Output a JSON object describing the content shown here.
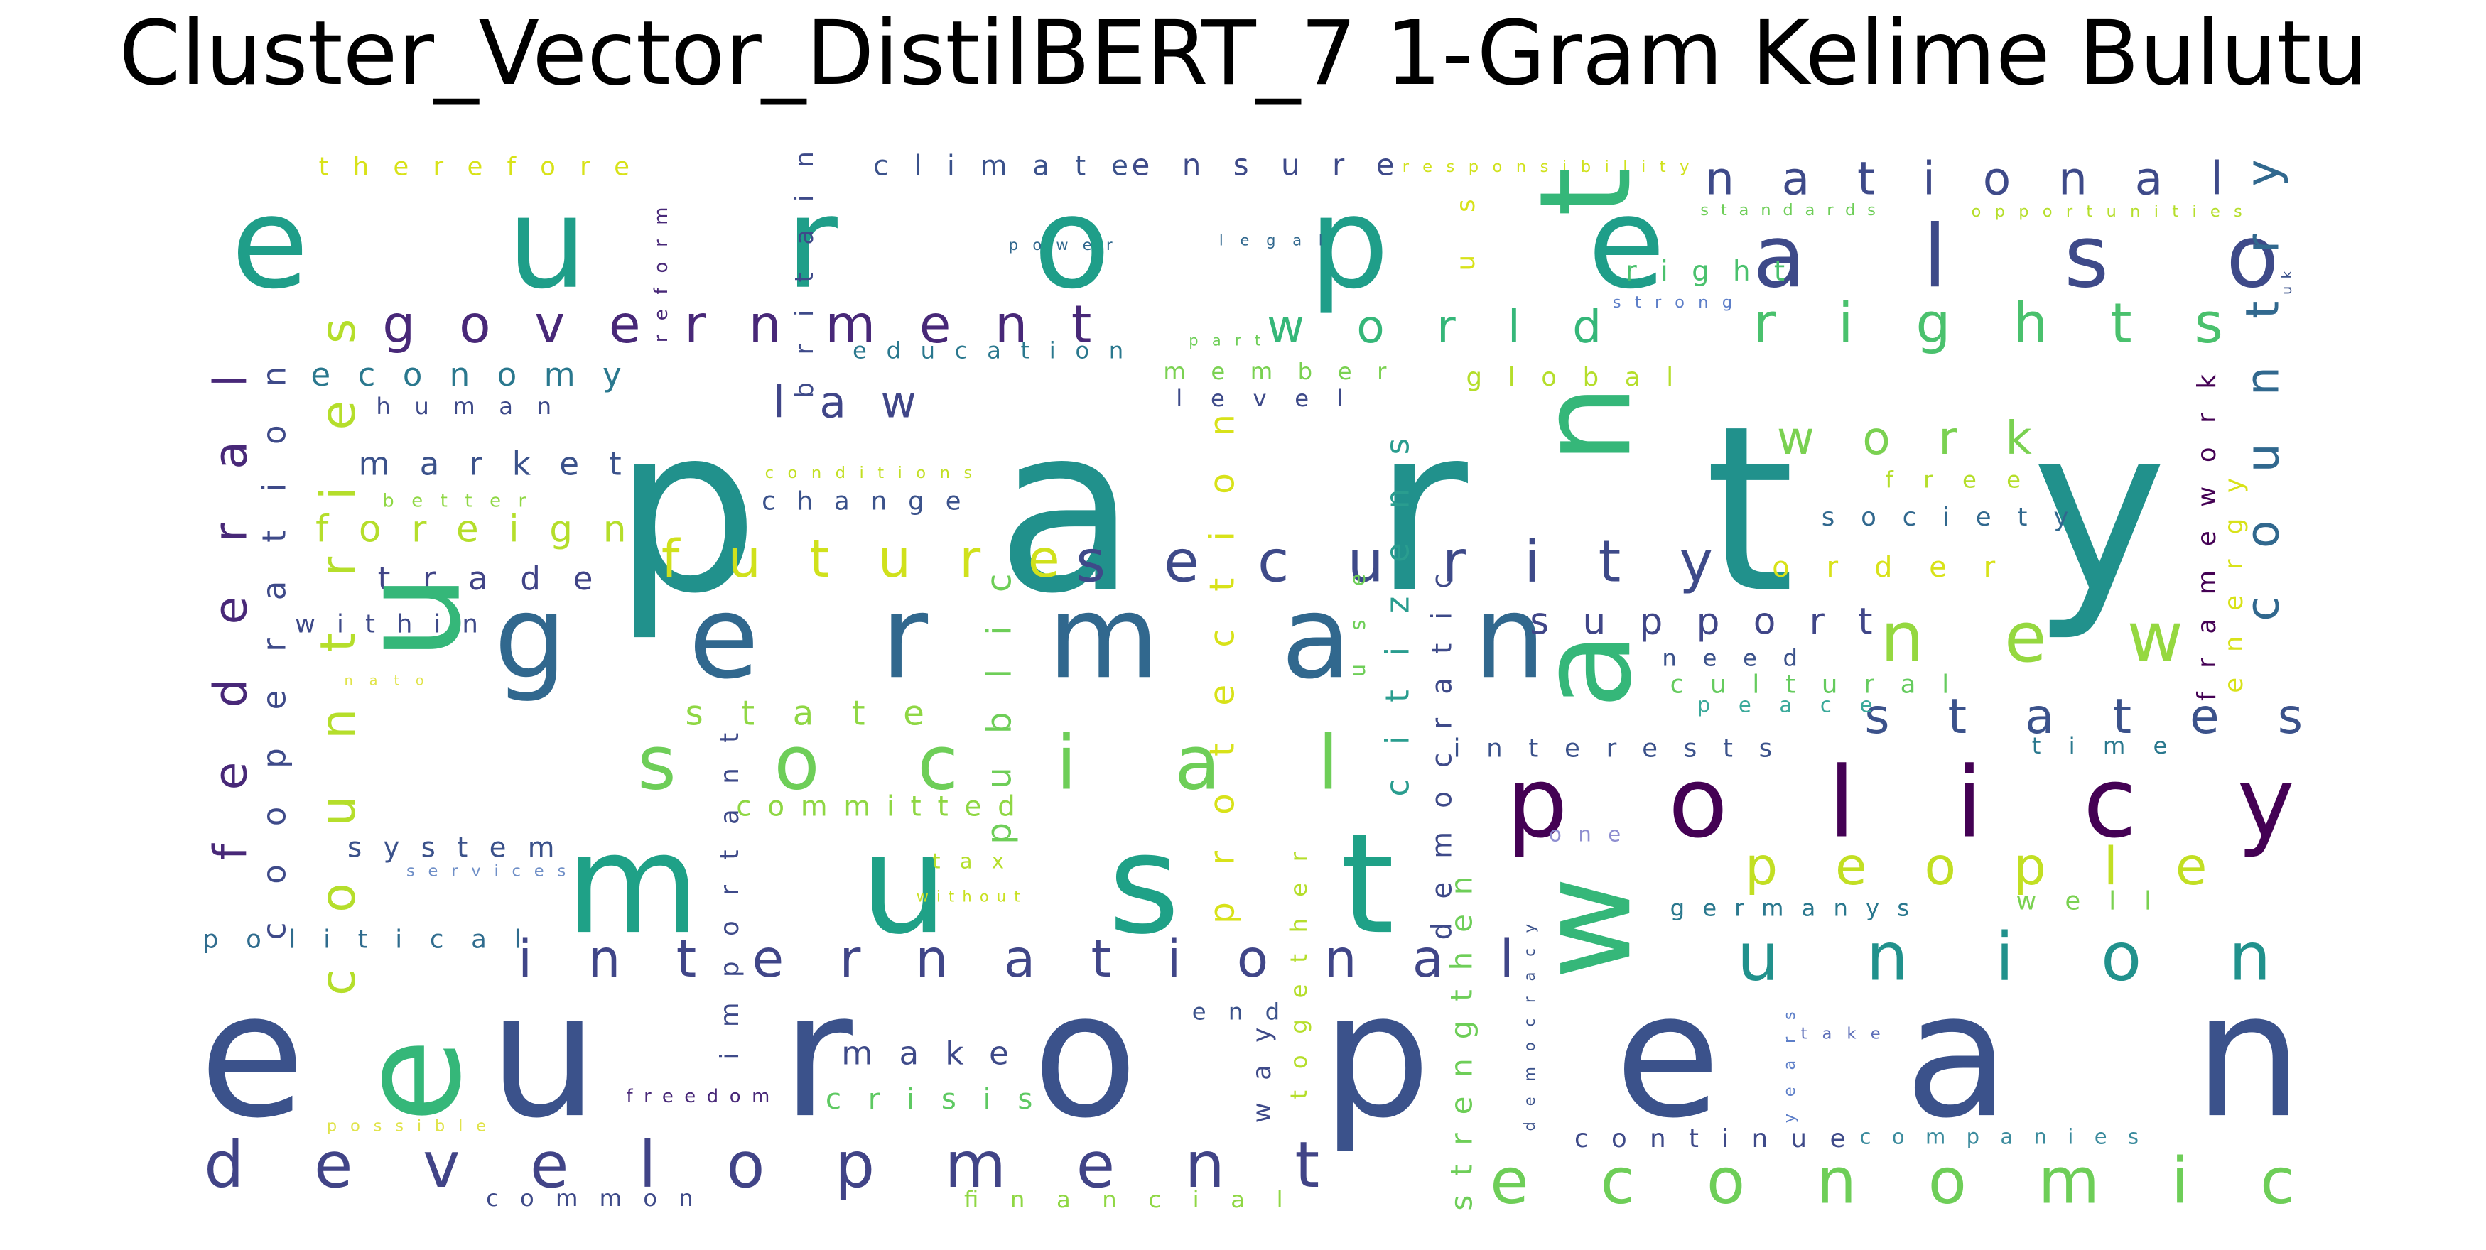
{
  "title": "Cluster_Vector_DistilBERT_7 1-Gram Kelime Bulutu",
  "words": [
    {
      "text": "party",
      "color": "#21918c"
    },
    {
      "text": "european",
      "color": "#3b528b"
    },
    {
      "text": "europe",
      "color": "#1f9e89"
    },
    {
      "text": "german",
      "color": "#31688e"
    },
    {
      "text": "must",
      "color": "#1fa187"
    },
    {
      "text": "also",
      "color": "#3e4a89"
    },
    {
      "text": "government",
      "color": "#482878"
    },
    {
      "text": "world",
      "color": "#35b779"
    },
    {
      "text": "rights",
      "color": "#4ac16d"
    },
    {
      "text": "national",
      "color": "#3e4a89"
    },
    {
      "text": "law",
      "color": "#404688"
    },
    {
      "text": "economy",
      "color": "#2a788e"
    },
    {
      "text": "work",
      "color": "#7ad151"
    },
    {
      "text": "security",
      "color": "#3e4a89"
    },
    {
      "text": "future",
      "color": "#d0e11c"
    },
    {
      "text": "market",
      "color": "#3b528b"
    },
    {
      "text": "foreign",
      "color": "#b5de2b"
    },
    {
      "text": "trade",
      "color": "#414487"
    },
    {
      "text": "within",
      "color": "#3e4a89"
    },
    {
      "text": "social",
      "color": "#6ece58"
    },
    {
      "text": "state",
      "color": "#8fd744"
    },
    {
      "text": "support",
      "color": "#404688"
    },
    {
      "text": "new",
      "color": "#95d840"
    },
    {
      "text": "states",
      "color": "#3b528b"
    },
    {
      "text": "policy",
      "color": "#440154"
    },
    {
      "text": "people",
      "color": "#c2df23"
    },
    {
      "text": "union",
      "color": "#21918c"
    },
    {
      "text": "international",
      "color": "#404688"
    },
    {
      "text": "development",
      "color": "#414487"
    },
    {
      "text": "economic",
      "color": "#6ece58"
    },
    {
      "text": "political",
      "color": "#2f6c8e"
    },
    {
      "text": "system",
      "color": "#3b528b"
    },
    {
      "text": "services",
      "color": "#6f8fc7"
    },
    {
      "text": "committed",
      "color": "#8fd744"
    },
    {
      "text": "tax",
      "color": "#b5de2b"
    },
    {
      "text": "without",
      "color": "#c8e020"
    },
    {
      "text": "make",
      "color": "#3e4a89"
    },
    {
      "text": "crisis",
      "color": "#5ec962"
    },
    {
      "text": "freedom",
      "color": "#482878"
    },
    {
      "text": "possible",
      "color": "#e0e34a"
    },
    {
      "text": "common",
      "color": "#3e4a89"
    },
    {
      "text": "financial",
      "color": "#8fd744"
    },
    {
      "text": "end",
      "color": "#3b528b"
    },
    {
      "text": "continue",
      "color": "#3e4a89"
    },
    {
      "text": "companies",
      "color": "#3b8b9d"
    },
    {
      "text": "germanys",
      "color": "#2a788e"
    },
    {
      "text": "well",
      "color": "#7ad151"
    },
    {
      "text": "one",
      "color": "#8e8ed0"
    },
    {
      "text": "interests",
      "color": "#3b528b"
    },
    {
      "text": "need",
      "color": "#3b528b"
    },
    {
      "text": "cultural",
      "color": "#65cb5e"
    },
    {
      "text": "peace",
      "color": "#3aa99a"
    },
    {
      "text": "time",
      "color": "#2a788e"
    },
    {
      "text": "order",
      "color": "#d8e219"
    },
    {
      "text": "society",
      "color": "#31688e"
    },
    {
      "text": "free",
      "color": "#b5de2b"
    },
    {
      "text": "right",
      "color": "#4ac16d"
    },
    {
      "text": "strong",
      "color": "#5c7ec8"
    },
    {
      "text": "standards",
      "color": "#6ece58"
    },
    {
      "text": "opportunities",
      "color": "#b5de2b"
    },
    {
      "text": "responsibility",
      "color": "#d0e11c"
    },
    {
      "text": "ensure",
      "color": "#3e4a89"
    },
    {
      "text": "climate",
      "color": "#3b528b"
    },
    {
      "text": "therefore",
      "color": "#d8e219"
    },
    {
      "text": "power",
      "color": "#31688e"
    },
    {
      "text": "legal",
      "color": "#31688e"
    },
    {
      "text": "education",
      "color": "#2a788e"
    },
    {
      "text": "part",
      "color": "#6ece58"
    },
    {
      "text": "member",
      "color": "#7ad151"
    },
    {
      "text": "level",
      "color": "#3e4a89"
    },
    {
      "text": "global",
      "color": "#b5de2b"
    },
    {
      "text": "human",
      "color": "#3e4a89"
    },
    {
      "text": "conditions",
      "color": "#c2df23"
    },
    {
      "text": "better",
      "color": "#8fd744"
    },
    {
      "text": "change",
      "color": "#3b528b"
    },
    {
      "text": "nato",
      "color": "#e0e34a"
    },
    {
      "text": "take",
      "color": "#5c6eb8"
    },
    {
      "text": "eu",
      "color": "#35b779"
    },
    {
      "text": "want",
      "color": "#35b779"
    },
    {
      "text": "federal",
      "color": "#482878"
    },
    {
      "text": "countries",
      "color": "#b5de2b"
    },
    {
      "text": "cooperation",
      "color": "#3e4a89"
    },
    {
      "text": "britain",
      "color": "#3e4a89"
    },
    {
      "text": "reform",
      "color": "#482878"
    },
    {
      "text": "important",
      "color": "#3e4a89"
    },
    {
      "text": "public",
      "color": "#6ece58"
    },
    {
      "text": "protection",
      "color": "#d8e219"
    },
    {
      "text": "citizens",
      "color": "#2a9d8f"
    },
    {
      "text": "use",
      "color": "#6ece58"
    },
    {
      "text": "democratic",
      "color": "#3e4a89"
    },
    {
      "text": "us",
      "color": "#d8e219"
    },
    {
      "text": "together",
      "color": "#b5de2b"
    },
    {
      "text": "way",
      "color": "#3e4a89"
    },
    {
      "text": "strengthen",
      "color": "#6ece58"
    },
    {
      "text": "democracy",
      "color": "#3b528b"
    },
    {
      "text": "years",
      "color": "#5c7ec8"
    },
    {
      "text": "framework",
      "color": "#440154"
    },
    {
      "text": "energy",
      "color": "#d8e219"
    },
    {
      "text": "country",
      "color": "#31688e"
    },
    {
      "text": "uk",
      "color": "#3b528b"
    }
  ]
}
